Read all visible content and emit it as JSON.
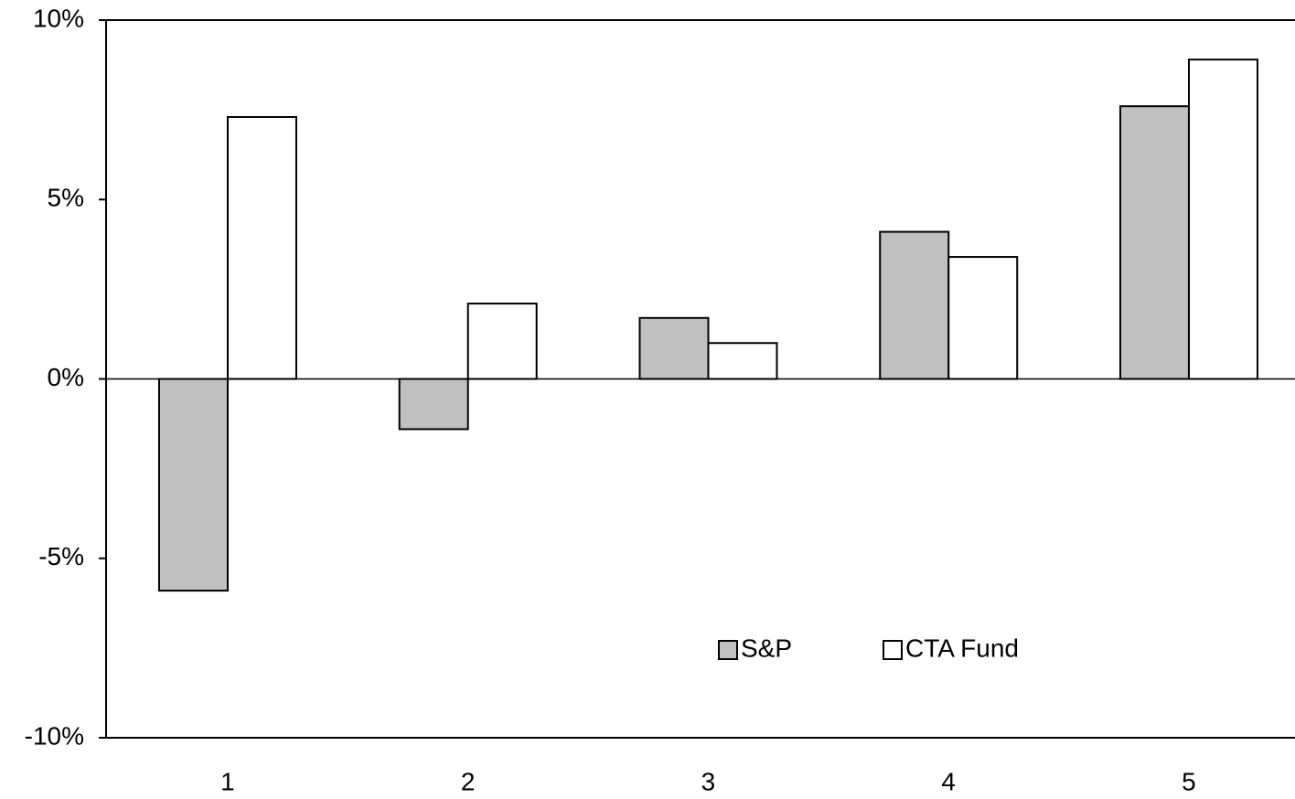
{
  "chart_data": {
    "type": "bar",
    "categories": [
      "1",
      "2",
      "3",
      "4",
      "5"
    ],
    "series": [
      {
        "name": "S&P",
        "color": "#c0c0c0",
        "values": [
          -5.9,
          -1.4,
          1.7,
          4.1,
          7.6
        ]
      },
      {
        "name": "CTA Fund",
        "color": "#ffffff",
        "values": [
          7.3,
          2.1,
          1.0,
          3.4,
          8.9
        ]
      }
    ],
    "ylim": [
      -10,
      10
    ],
    "yticks": [
      {
        "value": -10,
        "label": "-10%"
      },
      {
        "value": -5,
        "label": "-5%"
      },
      {
        "value": 0,
        "label": "0%"
      },
      {
        "value": 5,
        "label": "5%"
      },
      {
        "value": 10,
        "label": "10%"
      }
    ],
    "grid": false,
    "legend": "lower-center"
  }
}
